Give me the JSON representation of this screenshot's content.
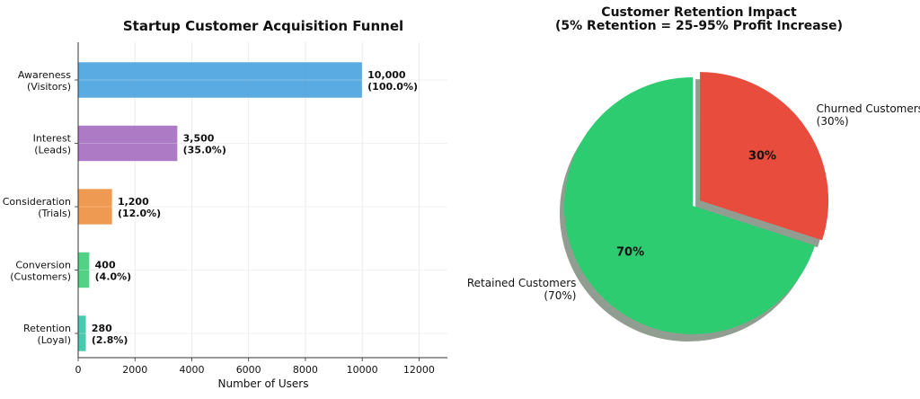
{
  "chart_data": [
    {
      "type": "bar",
      "orientation": "horizontal",
      "title": "Startup Customer Acquisition Funnel",
      "xlabel": "Number of Users",
      "ylabel": "",
      "xlim": [
        0,
        13000
      ],
      "xticks": [
        "0",
        "2000",
        "4000",
        "6000",
        "8000",
        "10000",
        "12000"
      ],
      "grid": true,
      "categories": [
        [
          "Awareness",
          "(Visitors)"
        ],
        [
          "Interest",
          "(Leads)"
        ],
        [
          "Consideration",
          "(Trials)"
        ],
        [
          "Conversion",
          "(Customers)"
        ],
        [
          "Retention",
          "(Loyal)"
        ]
      ],
      "values": [
        10000,
        3500,
        1200,
        400,
        280
      ],
      "value_labels": [
        [
          "10,000",
          "(100.0%)"
        ],
        [
          "3,500",
          "(35.0%)"
        ],
        [
          "1,200",
          "(12.0%)"
        ],
        [
          "400",
          "(4.0%)"
        ],
        [
          "280",
          "(2.8%)"
        ]
      ],
      "colors": [
        "#52a7e0",
        "#a974c4",
        "#ef9549",
        "#49d07f",
        "#3ec9a9"
      ]
    },
    {
      "type": "pie",
      "title": [
        "Customer Retention Impact",
        "(5% Retention = 25-95% Profit Increase)"
      ],
      "slices": [
        {
          "name": "Churned Customers",
          "label": [
            "Churned Customers",
            "(30%)"
          ],
          "value": 30,
          "pct_label": "30%",
          "color": "#e74c3c",
          "exploded": true
        },
        {
          "name": "Retained Customers",
          "label": [
            "Retained Customers",
            "(70%)"
          ],
          "value": 70,
          "pct_label": "70%",
          "color": "#2ecc71",
          "exploded": false
        }
      ],
      "shadow": true,
      "start_angle": 90
    }
  ]
}
